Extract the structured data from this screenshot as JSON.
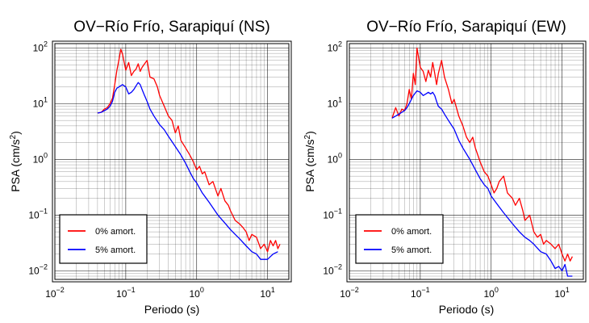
{
  "chart_data": [
    {
      "type": "line",
      "title": "OV−Río Frío, Sarapiquí (NS)",
      "xlabel": "Periodo (s)",
      "ylabel_main": "PSA (cm/s",
      "ylabel_sup": "2",
      "ylabel_close": ")",
      "x_scale": "log",
      "y_scale": "log",
      "xlim": [
        0.01,
        20
      ],
      "ylim": [
        0.007,
        120
      ],
      "x_ticks": [
        {
          "base": "10",
          "exp": "−2"
        },
        {
          "base": "10",
          "exp": "−1"
        },
        {
          "base": "10",
          "exp": "0"
        },
        {
          "base": "10",
          "exp": "1"
        }
      ],
      "y_ticks": [
        {
          "base": "10",
          "exp": "−2"
        },
        {
          "base": "10",
          "exp": "−1"
        },
        {
          "base": "10",
          "exp": "0"
        },
        {
          "base": "10",
          "exp": "1"
        },
        {
          "base": "10",
          "exp": "2"
        }
      ],
      "grid": true,
      "legend_position": "bottom-left",
      "series": [
        {
          "name": "0% amort.",
          "color": "#ff0000",
          "x": [
            0.04,
            0.045,
            0.05,
            0.055,
            0.06,
            0.065,
            0.07,
            0.075,
            0.08,
            0.085,
            0.09,
            0.1,
            0.11,
            0.12,
            0.13,
            0.14,
            0.15,
            0.16,
            0.17,
            0.18,
            0.2,
            0.22,
            0.25,
            0.28,
            0.3,
            0.35,
            0.4,
            0.45,
            0.5,
            0.55,
            0.6,
            0.7,
            0.8,
            0.9,
            1.0,
            1.1,
            1.2,
            1.3,
            1.5,
            1.7,
            2.0,
            2.2,
            2.5,
            2.8,
            3.0,
            3.5,
            4.0,
            4.5,
            5.0,
            5.5,
            6.0,
            7.0,
            8.0,
            9.0,
            10,
            11,
            12,
            13,
            14,
            15
          ],
          "y": [
            6.8,
            7.0,
            8.0,
            8.5,
            10.0,
            12.5,
            22,
            40,
            60,
            95,
            78,
            40,
            55,
            32,
            38,
            42,
            52,
            38,
            45,
            50,
            60,
            30,
            28,
            20,
            14,
            9,
            6,
            5,
            3,
            4,
            2.2,
            1.6,
            1.2,
            0.9,
            0.65,
            0.75,
            0.55,
            0.6,
            0.35,
            0.4,
            0.22,
            0.3,
            0.18,
            0.15,
            0.12,
            0.08,
            0.07,
            0.06,
            0.05,
            0.035,
            0.045,
            0.04,
            0.025,
            0.03,
            0.022,
            0.035,
            0.028,
            0.035,
            0.025,
            0.03
          ]
        },
        {
          "name": "5% amort.",
          "color": "#0000ff",
          "x": [
            0.04,
            0.045,
            0.05,
            0.055,
            0.06,
            0.065,
            0.07,
            0.075,
            0.08,
            0.09,
            0.1,
            0.11,
            0.12,
            0.13,
            0.14,
            0.15,
            0.16,
            0.17,
            0.18,
            0.2,
            0.22,
            0.25,
            0.3,
            0.35,
            0.4,
            0.5,
            0.6,
            0.7,
            0.8,
            0.9,
            1.0,
            1.2,
            1.5,
            2.0,
            2.5,
            3.0,
            3.5,
            4.0,
            5.0,
            6.0,
            7.0,
            8.0,
            9.0,
            10,
            11,
            12,
            13,
            14
          ],
          "y": [
            6.8,
            7.0,
            7.5,
            8.0,
            9.0,
            11,
            16,
            19,
            20,
            22,
            20,
            15,
            16,
            18,
            21,
            24,
            22,
            18,
            15,
            11,
            8,
            6,
            4.2,
            3.4,
            2.6,
            1.7,
            1.2,
            0.85,
            0.6,
            0.45,
            0.38,
            0.25,
            0.17,
            0.1,
            0.072,
            0.055,
            0.045,
            0.038,
            0.028,
            0.022,
            0.02,
            0.016,
            0.016,
            0.016,
            0.018,
            0.02,
            0.021,
            0.022
          ]
        }
      ]
    },
    {
      "type": "line",
      "title": "OV−Río Frío, Sarapiquí (EW)",
      "xlabel": "Periodo (s)",
      "ylabel_main": "PSA (cm/s",
      "ylabel_sup": "2",
      "ylabel_close": ")",
      "x_scale": "log",
      "y_scale": "log",
      "xlim": [
        0.01,
        20
      ],
      "ylim": [
        0.007,
        120
      ],
      "x_ticks": [
        {
          "base": "10",
          "exp": "−2"
        },
        {
          "base": "10",
          "exp": "−1"
        },
        {
          "base": "10",
          "exp": "0"
        },
        {
          "base": "10",
          "exp": "1"
        }
      ],
      "y_ticks": [
        {
          "base": "10",
          "exp": "−2"
        },
        {
          "base": "10",
          "exp": "−1"
        },
        {
          "base": "10",
          "exp": "0"
        },
        {
          "base": "10",
          "exp": "1"
        },
        {
          "base": "10",
          "exp": "2"
        }
      ],
      "grid": true,
      "legend_position": "bottom-left",
      "series": [
        {
          "name": "0% amort.",
          "color": "#ff0000",
          "x": [
            0.04,
            0.045,
            0.05,
            0.055,
            0.06,
            0.065,
            0.07,
            0.075,
            0.08,
            0.085,
            0.09,
            0.1,
            0.11,
            0.12,
            0.13,
            0.14,
            0.15,
            0.16,
            0.17,
            0.18,
            0.2,
            0.22,
            0.25,
            0.28,
            0.3,
            0.35,
            0.4,
            0.45,
            0.5,
            0.55,
            0.6,
            0.7,
            0.8,
            0.9,
            1.0,
            1.1,
            1.2,
            1.3,
            1.5,
            1.7,
            2.0,
            2.2,
            2.5,
            2.8,
            3.0,
            3.5,
            4.0,
            4.5,
            5.0,
            5.5,
            6.0,
            7.0,
            8.0,
            9.0,
            10,
            11,
            12,
            13,
            14
          ],
          "y": [
            5.5,
            8.5,
            6.0,
            8.0,
            7.5,
            10.0,
            18,
            12,
            35,
            22,
            100,
            45,
            38,
            25,
            40,
            30,
            55,
            35,
            22,
            35,
            60,
            30,
            18,
            10,
            12,
            6,
            4,
            2.5,
            2.0,
            2.5,
            1.6,
            0.9,
            0.6,
            0.5,
            0.35,
            0.25,
            0.3,
            0.4,
            0.5,
            0.25,
            0.2,
            0.15,
            0.2,
            0.12,
            0.08,
            0.1,
            0.05,
            0.04,
            0.045,
            0.03,
            0.035,
            0.03,
            0.025,
            0.03,
            0.02,
            0.015,
            0.02,
            0.015,
            0.018
          ]
        },
        {
          "name": "5% amort.",
          "color": "#0000ff",
          "x": [
            0.04,
            0.045,
            0.05,
            0.055,
            0.06,
            0.065,
            0.07,
            0.075,
            0.08,
            0.09,
            0.1,
            0.11,
            0.12,
            0.13,
            0.14,
            0.15,
            0.16,
            0.17,
            0.18,
            0.2,
            0.22,
            0.25,
            0.3,
            0.35,
            0.4,
            0.5,
            0.6,
            0.7,
            0.8,
            0.9,
            1.0,
            1.2,
            1.5,
            2.0,
            2.5,
            3.0,
            3.5,
            4.0,
            5.0,
            6.0,
            7.0,
            8.0,
            9.0,
            10,
            11,
            12,
            13,
            14
          ],
          "y": [
            5.5,
            6.0,
            6.5,
            7.0,
            7.5,
            8.5,
            10,
            12,
            14,
            17,
            16,
            14,
            15,
            16,
            15,
            16,
            14,
            11,
            9,
            8,
            6.5,
            5,
            3.5,
            2.2,
            1.6,
            1.0,
            0.65,
            0.45,
            0.35,
            0.3,
            0.22,
            0.16,
            0.11,
            0.07,
            0.05,
            0.04,
            0.035,
            0.03,
            0.022,
            0.02,
            0.015,
            0.011,
            0.012,
            0.01,
            0.013,
            0.008,
            0.008,
            0.008
          ]
        }
      ]
    }
  ]
}
